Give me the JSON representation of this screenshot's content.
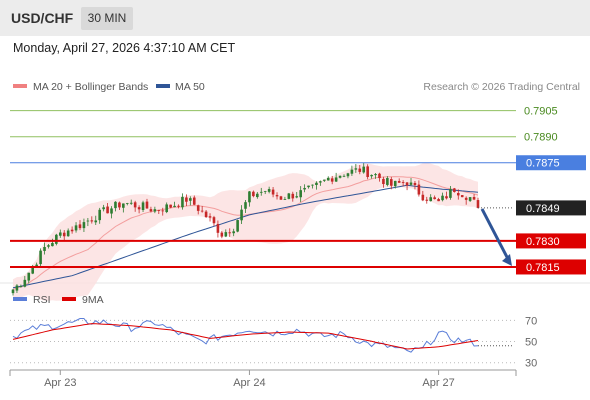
{
  "header": {
    "symbol": "USD/CHF",
    "timeframe": "30 MIN",
    "datetime": "Monday, April 27, 2026 4:37:10 AM CET"
  },
  "copyright": "Research © 2026 Trading Central",
  "colors": {
    "ma20": "#f08080",
    "ma50": "#2f5597",
    "bollinger_fill": "#fbe0e0",
    "up_candle": "#2e7d32",
    "down_candle": "#c62828",
    "support": "#dd0000",
    "resistance": "#4a7fe0",
    "target": "#90c060",
    "last_price_tag": "#222222",
    "arrow": "#2f5597",
    "rsi": "#5b7ed8",
    "rsi_ma": "#dd0000"
  },
  "chart_data": [
    {
      "type": "candlestick",
      "title": "",
      "legend": [
        {
          "label": "MA 20 + Bollinger Bands",
          "color": "#f08080"
        },
        {
          "label": "MA 50",
          "color": "#2f5597"
        }
      ],
      "x_ticks": [
        {
          "label": "Apr 23",
          "index": 12
        },
        {
          "label": "Apr 24",
          "index": 60
        },
        {
          "label": "Apr 27",
          "index": 108
        }
      ],
      "y_range": [
        0.78075,
        0.7914
      ],
      "levels": [
        {
          "value": 0.7905,
          "label": "0.7905",
          "kind": "target"
        },
        {
          "value": 0.789,
          "label": "0.7890",
          "kind": "target"
        },
        {
          "value": 0.7875,
          "label": "0.7875",
          "kind": "resistance"
        },
        {
          "value": 0.7849,
          "label": "0.7849",
          "kind": "last"
        },
        {
          "value": 0.783,
          "label": "0.7830",
          "kind": "support"
        },
        {
          "value": 0.7815,
          "label": "0.7815",
          "kind": "support"
        }
      ],
      "forecast_arrow": {
        "from": 0.7849,
        "to": 0.7815
      },
      "ohlc_keypoints": [
        [
          0,
          0.7802
        ],
        [
          2,
          0.7806
        ],
        [
          5,
          0.7815
        ],
        [
          8,
          0.7826
        ],
        [
          12,
          0.7834
        ],
        [
          16,
          0.7838
        ],
        [
          20,
          0.7843
        ],
        [
          24,
          0.7848
        ],
        [
          28,
          0.7852
        ],
        [
          32,
          0.785
        ],
        [
          36,
          0.7848
        ],
        [
          40,
          0.785
        ],
        [
          44,
          0.7854
        ],
        [
          46,
          0.7851
        ],
        [
          50,
          0.7842
        ],
        [
          53,
          0.7834
        ],
        [
          56,
          0.7838
        ],
        [
          60,
          0.7856
        ],
        [
          64,
          0.7859
        ],
        [
          68,
          0.7855
        ],
        [
          72,
          0.7857
        ],
        [
          76,
          0.786
        ],
        [
          80,
          0.7866
        ],
        [
          84,
          0.7869
        ],
        [
          88,
          0.7871
        ],
        [
          92,
          0.7868
        ],
        [
          96,
          0.7862
        ],
        [
          100,
          0.7864
        ],
        [
          104,
          0.7856
        ],
        [
          108,
          0.7852
        ],
        [
          112,
          0.786
        ],
        [
          116,
          0.7855
        ],
        [
          118,
          0.7849
        ]
      ],
      "ma50_keypoints": [
        [
          0,
          0.7803
        ],
        [
          15,
          0.781
        ],
        [
          30,
          0.7822
        ],
        [
          45,
          0.7834
        ],
        [
          60,
          0.7845
        ],
        [
          75,
          0.7852
        ],
        [
          90,
          0.7858
        ],
        [
          100,
          0.7862
        ],
        [
          108,
          0.786
        ],
        [
          118,
          0.7858
        ]
      ]
    },
    {
      "type": "line",
      "title": "",
      "legend": [
        {
          "label": "RSI",
          "color": "#5b7ed8"
        },
        {
          "label": "9MA",
          "color": "#dd0000"
        }
      ],
      "y_range": [
        25,
        77
      ],
      "y_ticks": [
        70,
        50,
        30
      ],
      "rsi_keypoints": [
        [
          0,
          55
        ],
        [
          6,
          63
        ],
        [
          12,
          66
        ],
        [
          18,
          69
        ],
        [
          24,
          68
        ],
        [
          30,
          63
        ],
        [
          36,
          68
        ],
        [
          42,
          58
        ],
        [
          48,
          50
        ],
        [
          54,
          56
        ],
        [
          60,
          62
        ],
        [
          66,
          58
        ],
        [
          72,
          61
        ],
        [
          78,
          55
        ],
        [
          84,
          57
        ],
        [
          90,
          48
        ],
        [
          96,
          45
        ],
        [
          100,
          40
        ],
        [
          104,
          43
        ],
        [
          108,
          58
        ],
        [
          112,
          52
        ],
        [
          118,
          48
        ]
      ],
      "ma9_keypoints": [
        [
          0,
          52
        ],
        [
          10,
          61
        ],
        [
          20,
          67
        ],
        [
          30,
          65
        ],
        [
          40,
          61
        ],
        [
          50,
          53
        ],
        [
          60,
          57
        ],
        [
          70,
          59
        ],
        [
          80,
          58
        ],
        [
          90,
          51
        ],
        [
          100,
          43
        ],
        [
          108,
          45
        ],
        [
          118,
          51
        ]
      ]
    }
  ]
}
